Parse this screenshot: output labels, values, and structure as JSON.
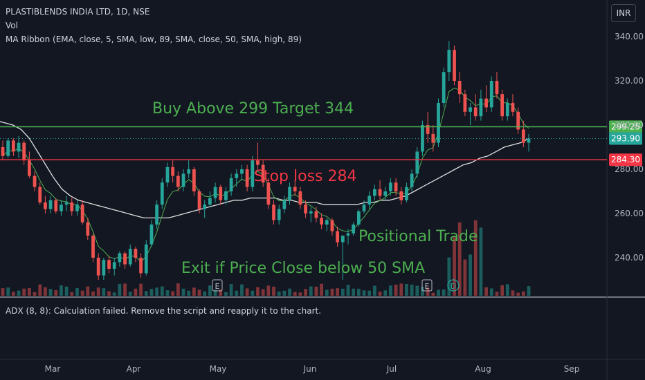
{
  "header": {
    "title": "PLASTIBLENDS INDIA LTD, 1D, NSE",
    "volume_label": "Vol",
    "ma_ribbon_label": "MA Ribbon (EMA, close, 5, SMA, low, 89, SMA, close, 50, SMA, high, 89)",
    "currency_button": "INR"
  },
  "indicator_pane": {
    "message": "ADX (8, 8): Calculation failed. Remove the script and reapply it to the chart."
  },
  "annotations": {
    "buy": "Buy Above 299 Target 344",
    "stop": "Stop loss 284",
    "positional": "Positional Trade",
    "exit": "Exit if Price Close below 50 SMA"
  },
  "event_markers": [
    "E",
    "E",
    "D"
  ],
  "colors": {
    "background": "#131722",
    "up_candle": "#26a69a",
    "down_candle": "#ef5350",
    "buy_line": "#4caf50",
    "stop_line": "#f23645",
    "annotation_text": "#4caf50",
    "stop_text": "#f23645",
    "sma_line": "#e0e0e0",
    "ema_line": "#4caf50"
  },
  "chart_data": {
    "type": "candlestick",
    "title": "PLASTIBLENDS INDIA LTD, 1D, NSE",
    "x_tick_labels": [
      "Mar",
      "Apr",
      "May",
      "Jun",
      "Jul",
      "Aug",
      "Sep"
    ],
    "y_tick_labels": [
      "240.00",
      "260.00",
      "280.00",
      "300.00",
      "320.00",
      "340.00"
    ],
    "ylim": [
      225,
      345
    ],
    "price_labels": [
      {
        "label": "299.25",
        "value": 299.25,
        "color": "#4caf50"
      },
      {
        "label": "293.90",
        "value": 293.9,
        "color": "#26a69a"
      },
      {
        "label": "284.30",
        "value": 284.3,
        "color": "#f23645"
      }
    ],
    "horizontal_levels": [
      {
        "name": "buy",
        "value": 299.25,
        "color": "#4caf50"
      },
      {
        "name": "stop",
        "value": 284.3,
        "color": "#f23645"
      }
    ],
    "candles_ohlc": [
      [
        290,
        293,
        284,
        286
      ],
      [
        286,
        294,
        285,
        293
      ],
      [
        293,
        294,
        286,
        288
      ],
      [
        288,
        295,
        285,
        292
      ],
      [
        292,
        293,
        282,
        284
      ],
      [
        284,
        288,
        276,
        277
      ],
      [
        277,
        279,
        270,
        272
      ],
      [
        272,
        274,
        264,
        265
      ],
      [
        265,
        268,
        260,
        262
      ],
      [
        262,
        268,
        260,
        266
      ],
      [
        266,
        267,
        260,
        261
      ],
      [
        261,
        266,
        259,
        264
      ],
      [
        264,
        268,
        261,
        265
      ],
      [
        265,
        267,
        259,
        261
      ],
      [
        261,
        266,
        259,
        264
      ],
      [
        264,
        266,
        255,
        256
      ],
      [
        256,
        258,
        248,
        250
      ],
      [
        250,
        251,
        238,
        240
      ],
      [
        240,
        242,
        230,
        232
      ],
      [
        232,
        240,
        230,
        239
      ],
      [
        239,
        241,
        233,
        235
      ],
      [
        235,
        240,
        232,
        238
      ],
      [
        238,
        243,
        236,
        242
      ],
      [
        242,
        243,
        235,
        237
      ],
      [
        237,
        246,
        236,
        244
      ],
      [
        244,
        245,
        238,
        240
      ],
      [
        240,
        242,
        231,
        233
      ],
      [
        233,
        248,
        232,
        246
      ],
      [
        246,
        257,
        245,
        255
      ],
      [
        255,
        266,
        253,
        264
      ],
      [
        264,
        276,
        262,
        274
      ],
      [
        274,
        283,
        272,
        281
      ],
      [
        281,
        284,
        274,
        277
      ],
      [
        277,
        279,
        270,
        272
      ],
      [
        272,
        280,
        270,
        278
      ],
      [
        278,
        284,
        276,
        280
      ],
      [
        280,
        281,
        268,
        270
      ],
      [
        270,
        271,
        260,
        262
      ],
      [
        262,
        266,
        258,
        264
      ],
      [
        264,
        270,
        263,
        267
      ],
      [
        267,
        274,
        265,
        272
      ],
      [
        272,
        273,
        264,
        266
      ],
      [
        266,
        272,
        264,
        270
      ],
      [
        270,
        278,
        268,
        276
      ],
      [
        276,
        280,
        272,
        278
      ],
      [
        278,
        282,
        275,
        280
      ],
      [
        280,
        282,
        270,
        272
      ],
      [
        272,
        286,
        270,
        284
      ],
      [
        284,
        292,
        280,
        282
      ],
      [
        282,
        284,
        272,
        274
      ],
      [
        274,
        276,
        262,
        264
      ],
      [
        264,
        266,
        255,
        257
      ],
      [
        257,
        264,
        255,
        262
      ],
      [
        262,
        268,
        260,
        266
      ],
      [
        266,
        274,
        264,
        272
      ],
      [
        272,
        275,
        268,
        270
      ],
      [
        270,
        272,
        262,
        264
      ],
      [
        264,
        266,
        258,
        260
      ],
      [
        260,
        263,
        256,
        261
      ],
      [
        261,
        263,
        256,
        258
      ],
      [
        258,
        260,
        253,
        255
      ],
      [
        255,
        258,
        252,
        257
      ],
      [
        257,
        258,
        250,
        252
      ],
      [
        252,
        254,
        245,
        247
      ],
      [
        247,
        248,
        230,
        250
      ],
      [
        250,
        253,
        246,
        251
      ],
      [
        251,
        256,
        250,
        255
      ],
      [
        255,
        262,
        254,
        261
      ],
      [
        261,
        266,
        260,
        264
      ],
      [
        264,
        270,
        262,
        268
      ],
      [
        268,
        273,
        266,
        271
      ],
      [
        271,
        275,
        266,
        268
      ],
      [
        268,
        272,
        266,
        270
      ],
      [
        270,
        276,
        268,
        274
      ],
      [
        274,
        276,
        268,
        270
      ],
      [
        270,
        272,
        264,
        266
      ],
      [
        266,
        274,
        265,
        272
      ],
      [
        272,
        280,
        270,
        278
      ],
      [
        278,
        290,
        276,
        288
      ],
      [
        288,
        302,
        286,
        300
      ],
      [
        300,
        306,
        292,
        296
      ],
      [
        296,
        300,
        288,
        292
      ],
      [
        292,
        312,
        290,
        310
      ],
      [
        310,
        326,
        308,
        324
      ],
      [
        324,
        338,
        320,
        334
      ],
      [
        334,
        336,
        318,
        320
      ],
      [
        320,
        324,
        310,
        314
      ],
      [
        314,
        316,
        304,
        306
      ],
      [
        306,
        310,
        300,
        308
      ],
      [
        308,
        314,
        302,
        304
      ],
      [
        304,
        316,
        302,
        312
      ],
      [
        312,
        318,
        306,
        308
      ],
      [
        308,
        322,
        306,
        320
      ],
      [
        320,
        324,
        312,
        314
      ],
      [
        314,
        316,
        302,
        304
      ],
      [
        304,
        312,
        302,
        310
      ],
      [
        310,
        314,
        304,
        306
      ],
      [
        306,
        308,
        296,
        298
      ],
      [
        298,
        302,
        290,
        292
      ],
      [
        292,
        296,
        288,
        293.9
      ]
    ],
    "sma50_close": [
      302,
      301,
      300,
      298,
      294,
      288,
      282,
      276,
      271,
      268,
      266,
      265,
      264,
      263,
      262,
      261,
      260,
      259,
      258,
      258,
      258,
      258,
      259,
      260,
      261,
      262,
      263,
      264,
      265,
      266,
      266,
      267,
      267,
      267,
      267,
      266,
      266,
      265,
      265,
      265,
      264,
      264,
      264,
      264,
      264,
      265,
      265,
      266,
      266,
      267,
      268,
      270,
      272,
      274,
      276,
      278,
      280,
      282,
      283,
      285,
      286,
      288,
      290,
      291,
      292,
      293.9
    ],
    "ema5_close": "follows recent closes"
  }
}
